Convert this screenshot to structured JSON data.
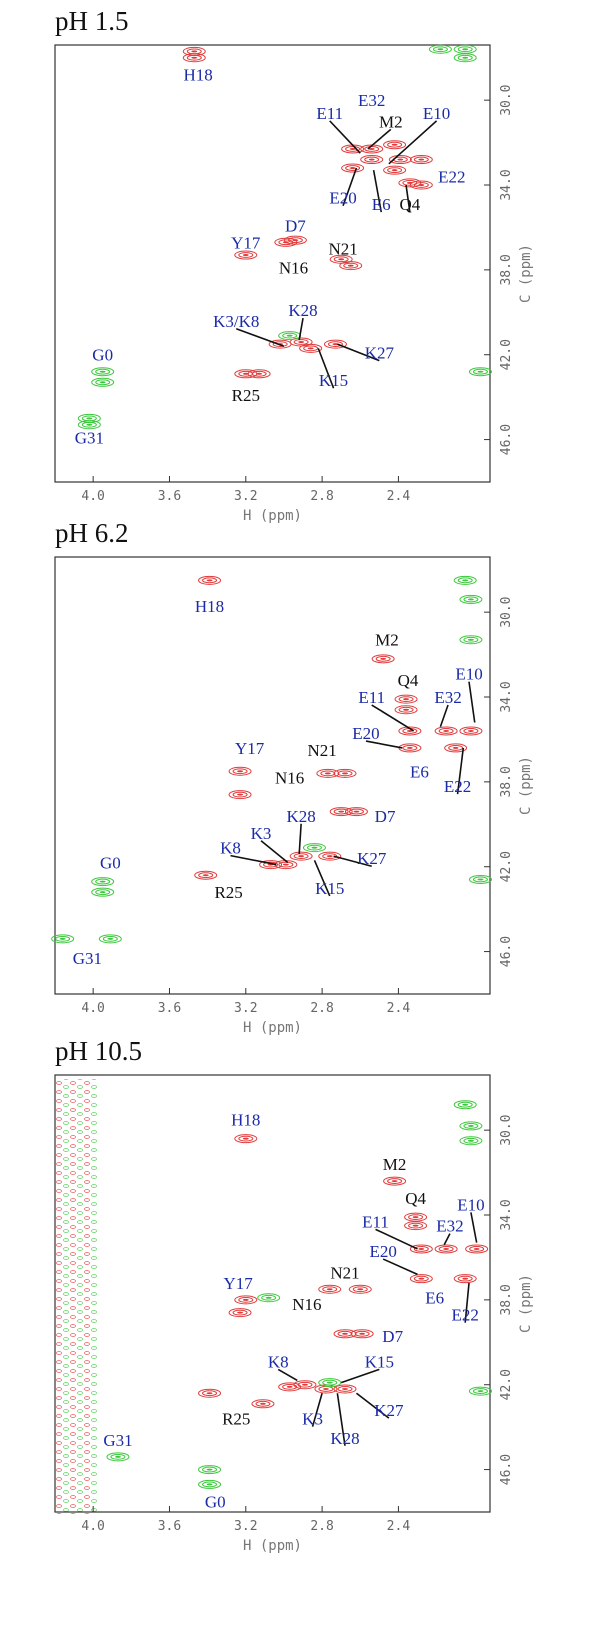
{
  "chart_data": [
    {
      "type": "scatter",
      "title": "pH 1.5",
      "x_label": "H (ppm)",
      "y_label": "C (ppm)",
      "xlim": [
        4.2,
        1.92
      ],
      "ylim": [
        27.4,
        48.0
      ],
      "xticks": [
        {
          "value": 4,
          "label": "4.0"
        },
        3.6,
        3.2,
        2.8,
        2.4
      ],
      "yticks": [
        {
          "value": 30,
          "label": "30.0"
        },
        {
          "value": 34,
          "label": "34.0"
        },
        {
          "value": 38,
          "label": "38.0"
        },
        {
          "value": 42,
          "label": "42.0"
        },
        {
          "value": 46,
          "label": "46.0"
        }
      ],
      "series": [
        {
          "color": "#e23a3a",
          "x": [
            2.54,
            2.64,
            2.42,
            2.54,
            2.39,
            2.28,
            2.64,
            2.42,
            2.34,
            2.28,
            2.94,
            2.99,
            3.2,
            2.7,
            2.65,
            3.02,
            2.91,
            2.86,
            2.73,
            3.2,
            3.13,
            3.47,
            3.47
          ],
          "values": [
            32.3,
            32.3,
            32.1,
            32.8,
            32.8,
            32.8,
            33.2,
            33.3,
            33.9,
            34.0,
            36.6,
            36.7,
            37.3,
            37.5,
            37.8,
            41.5,
            41.4,
            41.7,
            41.5,
            42.9,
            42.9,
            27.7,
            28.0
          ]
        },
        {
          "color": "#3cc83c",
          "x": [
            3.95,
            3.95,
            4.02,
            4.02,
            2.05,
            2.05,
            2.18,
            2.97,
            1.97
          ],
          "values": [
            42.8,
            43.3,
            45.0,
            45.3,
            27.6,
            28.0,
            27.6,
            41.1,
            42.8
          ]
        }
      ],
      "annotations": [
        {
          "text": "H18",
          "x": 3.45,
          "y": 28.8,
          "color": "#1a2aa8"
        },
        {
          "text": "E32",
          "x": 2.54,
          "y": 30.0,
          "color": "#1a2aa8"
        },
        {
          "text": "E11",
          "x": 2.76,
          "y": 30.6,
          "color": "#1a2aa8",
          "to": [
            2.6,
            32.5
          ]
        },
        {
          "text": "M2",
          "x": 2.44,
          "y": 31.0,
          "color": "#111111",
          "to": [
            2.56,
            32.3
          ]
        },
        {
          "text": "E10",
          "x": 2.2,
          "y": 30.6,
          "color": "#1a2aa8",
          "to": [
            2.45,
            33.0
          ]
        },
        {
          "text": "E22",
          "x": 2.12,
          "y": 33.6,
          "color": "#1a2aa8"
        },
        {
          "text": "E20",
          "x": 2.69,
          "y": 34.6,
          "color": "#1a2aa8",
          "to": [
            2.62,
            33.2
          ]
        },
        {
          "text": "E6",
          "x": 2.49,
          "y": 34.9,
          "color": "#1a2aa8",
          "to": [
            2.53,
            33.3
          ]
        },
        {
          "text": "Q4",
          "x": 2.34,
          "y": 34.9,
          "color": "#111111",
          "to": [
            2.36,
            34.0
          ]
        },
        {
          "text": "D7",
          "x": 2.94,
          "y": 35.9,
          "color": "#1a2aa8"
        },
        {
          "text": "Y17",
          "x": 3.2,
          "y": 36.7,
          "color": "#1a2aa8"
        },
        {
          "text": "N21",
          "x": 2.69,
          "y": 37.0,
          "color": "#111111"
        },
        {
          "text": "N16",
          "x": 2.95,
          "y": 37.9,
          "color": "#111111"
        },
        {
          "text": "K28",
          "x": 2.9,
          "y": 39.9,
          "color": "#1a2aa8",
          "to": [
            2.92,
            41.3
          ]
        },
        {
          "text": "K3/K8",
          "x": 3.25,
          "y": 40.4,
          "color": "#1a2aa8",
          "to": [
            3.0,
            41.6
          ]
        },
        {
          "text": "K27",
          "x": 2.5,
          "y": 41.9,
          "color": "#1a2aa8",
          "to": [
            2.72,
            41.5
          ]
        },
        {
          "text": "K15",
          "x": 2.74,
          "y": 43.2,
          "color": "#1a2aa8",
          "to": [
            2.82,
            41.7
          ]
        },
        {
          "text": "R25",
          "x": 3.2,
          "y": 43.9,
          "color": "#111111"
        },
        {
          "text": "G0",
          "x": 3.95,
          "y": 42.0,
          "color": "#1a2aa8"
        },
        {
          "text": "G31",
          "x": 4.02,
          "y": 45.9,
          "color": "#1a2aa8"
        }
      ]
    },
    {
      "type": "scatter",
      "title": "pH 6.2",
      "x_label": "H (ppm)",
      "y_label": "C (ppm)",
      "xlim": [
        4.2,
        1.92
      ],
      "ylim": [
        27.4,
        48.0
      ],
      "xticks": [
        {
          "value": 4,
          "label": "4.0"
        },
        3.6,
        3.2,
        2.8,
        2.4
      ],
      "yticks": [
        {
          "value": 30,
          "label": "30.0"
        },
        {
          "value": 34,
          "label": "34.0"
        },
        {
          "value": 38,
          "label": "38.0"
        },
        {
          "value": 42,
          "label": "42.0"
        },
        {
          "value": 46,
          "label": "46.0"
        }
      ],
      "series": [
        {
          "color": "#e23a3a",
          "x": [
            3.39,
            2.48,
            2.36,
            2.36,
            2.34,
            2.15,
            2.02,
            2.34,
            2.1,
            2.77,
            2.68,
            3.23,
            2.91,
            2.99,
            3.07,
            2.76,
            2.7,
            2.62,
            3.41,
            3.23
          ],
          "values": [
            28.5,
            32.2,
            34.1,
            34.6,
            35.6,
            35.6,
            35.6,
            36.4,
            36.4,
            37.6,
            37.6,
            37.5,
            41.5,
            41.9,
            41.9,
            41.5,
            39.4,
            39.4,
            42.4,
            38.6
          ]
        },
        {
          "color": "#3cc83c",
          "x": [
            2.05,
            2.02,
            2.02,
            3.95,
            3.95,
            4.16,
            3.91,
            1.97,
            2.84
          ],
          "values": [
            28.5,
            29.4,
            31.3,
            42.7,
            43.2,
            45.4,
            45.4,
            42.6,
            41.1
          ]
        }
      ],
      "annotations": [
        {
          "text": "H18",
          "x": 3.39,
          "y": 29.7,
          "color": "#1a2aa8"
        },
        {
          "text": "M2",
          "x": 2.46,
          "y": 31.3,
          "color": "#111111"
        },
        {
          "text": "Q4",
          "x": 2.35,
          "y": 33.2,
          "color": "#111111"
        },
        {
          "text": "E10",
          "x": 2.03,
          "y": 32.9,
          "color": "#1a2aa8",
          "to": [
            2.0,
            35.2
          ]
        },
        {
          "text": "E11",
          "x": 2.54,
          "y": 34.0,
          "color": "#1a2aa8",
          "to": [
            2.32,
            35.6
          ]
        },
        {
          "text": "E32",
          "x": 2.14,
          "y": 34.0,
          "color": "#1a2aa8",
          "to": [
            2.18,
            35.4
          ]
        },
        {
          "text": "E20",
          "x": 2.57,
          "y": 35.7,
          "color": "#1a2aa8",
          "to": [
            2.38,
            36.4
          ]
        },
        {
          "text": "Y17",
          "x": 3.18,
          "y": 36.4,
          "color": "#1a2aa8"
        },
        {
          "text": "N21",
          "x": 2.8,
          "y": 36.5,
          "color": "#111111"
        },
        {
          "text": "E6",
          "x": 2.29,
          "y": 37.5,
          "color": "#1a2aa8"
        },
        {
          "text": "N16",
          "x": 2.97,
          "y": 37.8,
          "color": "#111111"
        },
        {
          "text": "E22",
          "x": 2.09,
          "y": 38.2,
          "color": "#1a2aa8",
          "to": [
            2.06,
            36.4
          ]
        },
        {
          "text": "K28",
          "x": 2.91,
          "y": 39.6,
          "color": "#1a2aa8",
          "to": [
            2.92,
            41.4
          ]
        },
        {
          "text": "D7",
          "x": 2.47,
          "y": 39.6,
          "color": "#1a2aa8"
        },
        {
          "text": "K3",
          "x": 3.12,
          "y": 40.4,
          "color": "#1a2aa8",
          "to": [
            2.98,
            41.8
          ]
        },
        {
          "text": "K8",
          "x": 3.28,
          "y": 41.1,
          "color": "#1a2aa8",
          "to": [
            3.04,
            41.9
          ]
        },
        {
          "text": "K27",
          "x": 2.54,
          "y": 41.6,
          "color": "#1a2aa8",
          "to": [
            2.74,
            41.5
          ]
        },
        {
          "text": "G0",
          "x": 3.91,
          "y": 41.8,
          "color": "#1a2aa8"
        },
        {
          "text": "R25",
          "x": 3.29,
          "y": 43.2,
          "color": "#111111"
        },
        {
          "text": "K15",
          "x": 2.76,
          "y": 43.0,
          "color": "#1a2aa8",
          "to": [
            2.84,
            41.7
          ]
        },
        {
          "text": "G31",
          "x": 4.03,
          "y": 46.3,
          "color": "#1a2aa8"
        }
      ]
    },
    {
      "type": "scatter",
      "title": "pH 10.5",
      "x_label": "H (ppm)",
      "y_label": "C (ppm)",
      "xlim": [
        4.2,
        1.92
      ],
      "ylim": [
        27.4,
        48.0
      ],
      "xticks": [
        {
          "value": 4,
          "label": "4.0"
        },
        3.6,
        3.2,
        2.8,
        2.4
      ],
      "yticks": [
        {
          "value": 30,
          "label": "30.0"
        },
        {
          "value": 34,
          "label": "34.0"
        },
        {
          "value": 38,
          "label": "38.0"
        },
        {
          "value": 42,
          "label": "42.0"
        },
        {
          "value": 46,
          "label": "46.0"
        }
      ],
      "series": [
        {
          "color": "#e23a3a",
          "x": [
            3.2,
            2.42,
            2.31,
            2.31,
            2.28,
            2.15,
            1.99,
            2.28,
            2.05,
            2.76,
            2.6,
            3.23,
            2.68,
            2.59,
            2.89,
            2.78,
            2.68,
            2.97,
            3.39,
            3.11,
            3.2
          ],
          "values": [
            30.4,
            32.4,
            34.1,
            34.5,
            35.6,
            35.6,
            35.6,
            37.0,
            37.0,
            37.5,
            37.5,
            38.6,
            39.6,
            39.6,
            42.0,
            42.2,
            42.2,
            42.1,
            42.4,
            42.9,
            38.0
          ]
        },
        {
          "color": "#3cc83c",
          "x": [
            2.05,
            2.02,
            2.02,
            3.39,
            3.39,
            3.87,
            2.76,
            1.97,
            3.08
          ],
          "values": [
            28.8,
            29.8,
            30.5,
            46.0,
            46.7,
            45.4,
            41.9,
            42.3,
            37.9
          ]
        }
      ],
      "annotations": [
        {
          "text": "H18",
          "x": 3.2,
          "y": 29.5,
          "color": "#1a2aa8"
        },
        {
          "text": "M2",
          "x": 2.42,
          "y": 31.6,
          "color": "#111111"
        },
        {
          "text": "Q4",
          "x": 2.31,
          "y": 33.2,
          "color": "#111111"
        },
        {
          "text": "E10",
          "x": 2.02,
          "y": 33.5,
          "color": "#1a2aa8",
          "to": [
            1.99,
            35.3
          ]
        },
        {
          "text": "E32",
          "x": 2.13,
          "y": 34.5,
          "color": "#1a2aa8",
          "to": [
            2.16,
            35.4
          ]
        },
        {
          "text": "E11",
          "x": 2.52,
          "y": 34.3,
          "color": "#1a2aa8",
          "to": [
            2.3,
            35.6
          ]
        },
        {
          "text": "E20",
          "x": 2.48,
          "y": 35.7,
          "color": "#1a2aa8",
          "to": [
            2.3,
            36.8
          ]
        },
        {
          "text": "N21",
          "x": 2.68,
          "y": 36.7,
          "color": "#111111"
        },
        {
          "text": "Y17",
          "x": 3.24,
          "y": 37.2,
          "color": "#1a2aa8"
        },
        {
          "text": "E6",
          "x": 2.21,
          "y": 37.9,
          "color": "#1a2aa8"
        },
        {
          "text": "N16",
          "x": 2.88,
          "y": 38.2,
          "color": "#111111"
        },
        {
          "text": "E22",
          "x": 2.05,
          "y": 38.7,
          "color": "#1a2aa8",
          "to": [
            2.03,
            37.2
          ]
        },
        {
          "text": "D7",
          "x": 2.43,
          "y": 39.7,
          "color": "#1a2aa8"
        },
        {
          "text": "K15",
          "x": 2.5,
          "y": 40.9,
          "color": "#1a2aa8",
          "to": [
            2.7,
            41.9
          ]
        },
        {
          "text": "K8",
          "x": 3.03,
          "y": 40.9,
          "color": "#1a2aa8",
          "to": [
            2.93,
            41.8
          ]
        },
        {
          "text": "K27",
          "x": 2.45,
          "y": 43.2,
          "color": "#1a2aa8",
          "to": [
            2.62,
            42.4
          ]
        },
        {
          "text": "R25",
          "x": 3.25,
          "y": 43.6,
          "color": "#111111"
        },
        {
          "text": "K3",
          "x": 2.85,
          "y": 43.6,
          "color": "#1a2aa8",
          "to": [
            2.8,
            42.4
          ]
        },
        {
          "text": "K28",
          "x": 2.68,
          "y": 44.5,
          "color": "#1a2aa8",
          "to": [
            2.72,
            42.4
          ]
        },
        {
          "text": "G31",
          "x": 3.87,
          "y": 44.6,
          "color": "#1a2aa8"
        },
        {
          "text": "G0",
          "x": 3.36,
          "y": 47.5,
          "color": "#1a2aa8"
        }
      ]
    }
  ]
}
